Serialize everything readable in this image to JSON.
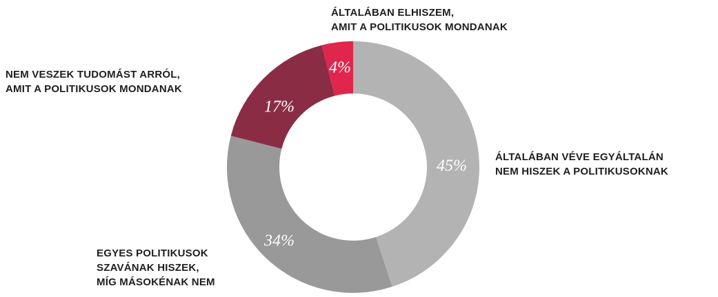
{
  "chart_data": {
    "type": "donut",
    "categories": [
      "ÁLTALÁBAN VÉVE EGYÁLTALÁN\nNEM HISZEK A POLITIKUSOKNAK",
      "EGYES POLITIKUSOK\nSZAVÁNAK HISZEK,\nMÍG MÁSOKÉNAK NEM",
      "NEM VESZEK TUDOMÁST ARRÓL,\nAMIT A POLITIKUSOK MONDANAK",
      "ÁLTALÁBAN ELHISZEM,\nAMIT A POLITIKUSOK MONDANAK"
    ],
    "values": [
      45,
      34,
      17,
      4
    ],
    "value_labels": [
      "45%",
      "34%",
      "17%",
      "4%"
    ],
    "colors": [
      "#b3b3b3",
      "#999999",
      "#8b2c45",
      "#e0264d"
    ]
  }
}
